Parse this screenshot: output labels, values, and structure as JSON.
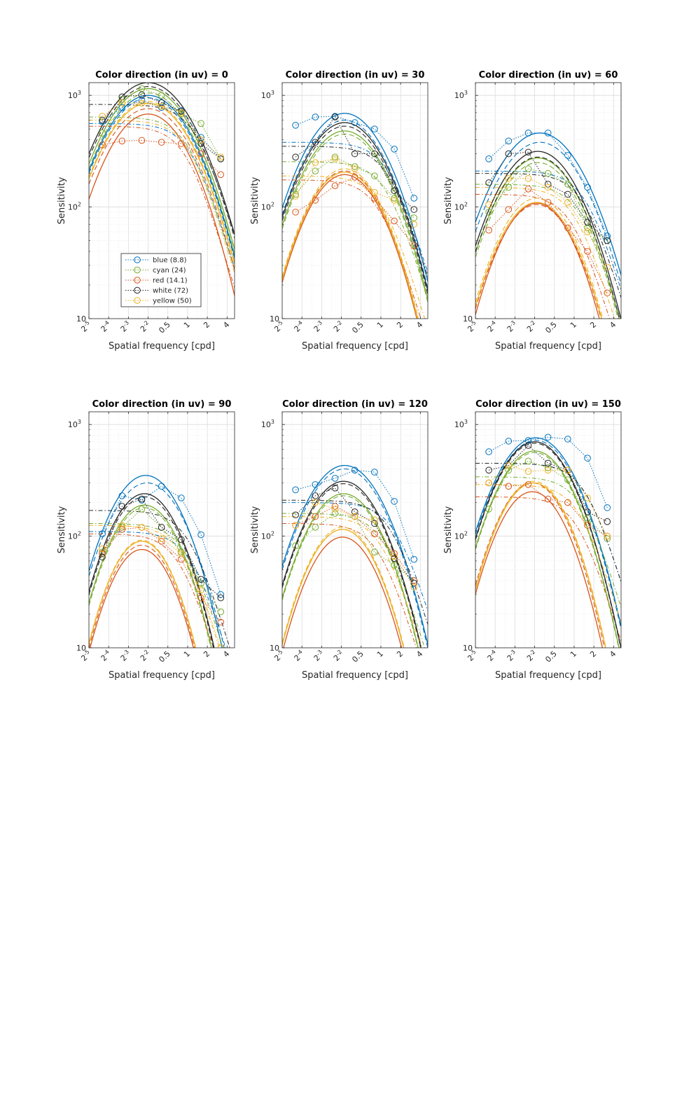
{
  "chart_data": {
    "type": "line",
    "figure_xlabel": "Spatial frequency [cpd]",
    "figure_ylabel": "Sensitivity",
    "title_prefix": "Color direction (in uv) = ",
    "x_ticks": [
      {
        "value": 0.03125,
        "base": "2",
        "exp": "-5"
      },
      {
        "value": 0.0625,
        "base": "2",
        "exp": "-4"
      },
      {
        "value": 0.125,
        "base": "2",
        "exp": "-3"
      },
      {
        "value": 0.25,
        "base": "2",
        "exp": "-2"
      },
      {
        "value": 0.5,
        "base": "0.5",
        "exp": ""
      },
      {
        "value": 1,
        "base": "1",
        "exp": ""
      },
      {
        "value": 2,
        "base": "2",
        "exp": ""
      },
      {
        "value": 4,
        "base": "4",
        "exp": ""
      }
    ],
    "y_ticks": [
      {
        "value": 10,
        "base": "10",
        "exp": ""
      },
      {
        "value": 100,
        "base": "10",
        "exp": "2"
      },
      {
        "value": 1000,
        "base": "10",
        "exp": "3"
      }
    ],
    "x_scale": "log",
    "y_scale": "log",
    "xlim": [
      0.03125,
      5.2
    ],
    "ylim": [
      10,
      1300
    ],
    "grid": true,
    "legend_location": "lower-center",
    "measured_x": [
      0.05,
      0.1,
      0.2,
      0.4,
      0.8,
      1.6,
      3.2
    ],
    "series_meta": [
      {
        "key": "blue",
        "label": "blue (8.8)",
        "color": "#0072BD"
      },
      {
        "key": "cyan",
        "label": "cyan (24)",
        "color": "#77AC30"
      },
      {
        "key": "red",
        "label": "red (14.1)",
        "color": "#D95319"
      },
      {
        "key": "white",
        "label": "white (72)",
        "color": "#262626"
      },
      {
        "key": "yellow",
        "label": "yellow (50)",
        "color": "#EDB120"
      }
    ],
    "panels": [
      {
        "direction": "0",
        "measured": {
          "blue": [
            580,
            780,
            900,
            780,
            730,
            420,
            270
          ],
          "cyan": [
            460,
            920,
            1150,
            1000,
            680,
            560,
            270
          ],
          "red": [
            360,
            390,
            395,
            380,
            370,
            300,
            195
          ],
          "white": [
            600,
            970,
            1010,
            860,
            720,
            370,
            270
          ],
          "yellow": [
            650,
            860,
            850,
            800,
            700,
            400,
            280
          ]
        },
        "model_solid": {
          "blue": {
            "peak": 1000,
            "fp": 0.25,
            "w": 1.7
          },
          "cyan": {
            "peak": 1150,
            "fp": 0.25,
            "w": 1.7
          },
          "red": {
            "peak": 680,
            "fp": 0.25,
            "w": 1.6
          },
          "white": {
            "peak": 1300,
            "fp": 0.25,
            "w": 1.75
          },
          "yellow": {
            "peak": 850,
            "fp": 0.25,
            "w": 1.7
          }
        },
        "model_dashed": {
          "blue": {
            "peak": 950,
            "fp": 0.25,
            "w": 1.7
          },
          "cyan": {
            "peak": 1050,
            "fp": 0.25,
            "w": 1.7
          },
          "red": {
            "peak": 760,
            "fp": 0.25,
            "w": 1.7
          },
          "white": {
            "peak": 1200,
            "fp": 0.25,
            "w": 1.75
          },
          "yellow": {
            "peak": 880,
            "fp": 0.25,
            "w": 1.7
          }
        },
        "model_dashdot": {
          "blue": {
            "plateau": 560,
            "fc": 1.2
          },
          "cyan": {
            "plateau": 640,
            "fc": 1.1
          },
          "red": {
            "plateau": 530,
            "fc": 1.0
          },
          "white": {
            "plateau": 830,
            "fc": 1.4
          },
          "yellow": {
            "plateau": 600,
            "fc": 1.1
          }
        }
      },
      {
        "direction": "30",
        "measured": {
          "blue": [
            540,
            640,
            650,
            570,
            500,
            330,
            120
          ],
          "cyan": [
            130,
            210,
            280,
            230,
            190,
            120,
            80
          ],
          "red": [
            90,
            115,
            155,
            185,
            120,
            75,
            45
          ],
          "white": [
            280,
            380,
            640,
            300,
            300,
            140,
            95
          ],
          "yellow": [
            125,
            250,
            270,
            220,
            135,
            115,
            70
          ]
        },
        "model_solid": {
          "blue": {
            "peak": 690,
            "fp": 0.28,
            "w": 1.6
          },
          "cyan": {
            "peak": 480,
            "fp": 0.28,
            "w": 1.6
          },
          "red": {
            "peak": 195,
            "fp": 0.28,
            "w": 1.5
          },
          "white": {
            "peak": 570,
            "fp": 0.28,
            "w": 1.6
          },
          "yellow": {
            "peak": 205,
            "fp": 0.28,
            "w": 1.5
          }
        },
        "model_dashed": {
          "blue": {
            "peak": 600,
            "fp": 0.28,
            "w": 1.6
          },
          "cyan": {
            "peak": 450,
            "fp": 0.28,
            "w": 1.6
          },
          "red": {
            "peak": 210,
            "fp": 0.28,
            "w": 1.5
          },
          "white": {
            "peak": 530,
            "fp": 0.28,
            "w": 1.6
          },
          "yellow": {
            "peak": 220,
            "fp": 0.28,
            "w": 1.5
          }
        },
        "model_dashdot": {
          "blue": {
            "plateau": 380,
            "fc": 1.4
          },
          "cyan": {
            "plateau": 255,
            "fc": 1.3
          },
          "red": {
            "plateau": 175,
            "fc": 1.0
          },
          "white": {
            "plateau": 350,
            "fc": 1.4
          },
          "yellow": {
            "plateau": 190,
            "fc": 1.1
          }
        }
      },
      {
        "direction": "60",
        "measured": {
          "blue": [
            270,
            390,
            460,
            460,
            290,
            150,
            55
          ],
          "cyan": [
            90,
            150,
            220,
            200,
            160,
            65,
            50
          ],
          "red": [
            62,
            95,
            145,
            110,
            65,
            40,
            17
          ],
          "white": [
            165,
            300,
            310,
            160,
            130,
            73,
            50
          ],
          "yellow": [
            105,
            180,
            180,
            150,
            110,
            60,
            29
          ]
        },
        "model_solid": {
          "blue": {
            "peak": 460,
            "fp": 0.3,
            "w": 1.7
          },
          "cyan": {
            "peak": 275,
            "fp": 0.28,
            "w": 1.6
          },
          "red": {
            "peak": 108,
            "fp": 0.27,
            "w": 1.45
          },
          "white": {
            "peak": 315,
            "fp": 0.28,
            "w": 1.6
          },
          "yellow": {
            "peak": 110,
            "fp": 0.27,
            "w": 1.5
          }
        },
        "model_dashed": {
          "blue": {
            "peak": 380,
            "fp": 0.3,
            "w": 1.7
          },
          "cyan": {
            "peak": 250,
            "fp": 0.28,
            "w": 1.6
          },
          "red": {
            "peak": 105,
            "fp": 0.27,
            "w": 1.5
          },
          "white": {
            "peak": 280,
            "fp": 0.28,
            "w": 1.6
          },
          "yellow": {
            "peak": 120,
            "fp": 0.27,
            "w": 1.5
          }
        },
        "model_dashdot": {
          "blue": {
            "plateau": 210,
            "fc": 1.6
          },
          "cyan": {
            "plateau": 160,
            "fc": 1.3
          },
          "red": {
            "plateau": 130,
            "fc": 1.0
          },
          "white": {
            "plateau": 200,
            "fc": 1.5
          },
          "yellow": {
            "plateau": 150,
            "fc": 1.1
          }
        }
      },
      {
        "direction": "90",
        "measured": {
          "blue": [
            105,
            230,
            210,
            280,
            220,
            103,
            30
          ],
          "cyan": [
            72,
            120,
            175,
            120,
            72,
            38,
            21
          ],
          "red": [
            70,
            115,
            120,
            90,
            62,
            28,
            17
          ],
          "white": [
            65,
            185,
            215,
            120,
            93,
            41,
            28
          ],
          "yellow": [
            77,
            125,
            120,
            95,
            70,
            33,
            10
          ]
        },
        "model_solid": {
          "blue": {
            "peak": 350,
            "fp": 0.23,
            "w": 1.45
          },
          "cyan": {
            "peak": 190,
            "fp": 0.22,
            "w": 1.4
          },
          "red": {
            "peak": 76,
            "fp": 0.2,
            "w": 1.3
          },
          "white": {
            "peak": 240,
            "fp": 0.22,
            "w": 1.4
          },
          "yellow": {
            "peak": 90,
            "fp": 0.2,
            "w": 1.3
          }
        },
        "model_dashed": {
          "blue": {
            "peak": 300,
            "fp": 0.24,
            "w": 1.5
          },
          "cyan": {
            "peak": 180,
            "fp": 0.22,
            "w": 1.4
          },
          "red": {
            "peak": 83,
            "fp": 0.2,
            "w": 1.3
          },
          "white": {
            "peak": 225,
            "fp": 0.22,
            "w": 1.4
          },
          "yellow": {
            "peak": 92,
            "fp": 0.2,
            "w": 1.3
          }
        },
        "model_dashdot": {
          "blue": {
            "plateau": 110,
            "fc": 1.2
          },
          "cyan": {
            "plateau": 130,
            "fc": 1.0
          },
          "red": {
            "plateau": 105,
            "fc": 0.8
          },
          "white": {
            "plateau": 170,
            "fc": 1.1
          },
          "yellow": {
            "plateau": 125,
            "fc": 0.9
          }
        }
      },
      {
        "direction": "120",
        "measured": {
          "blue": [
            260,
            290,
            330,
            390,
            375,
            205,
            62
          ],
          "cyan": [
            82,
            120,
            160,
            150,
            72,
            55,
            40
          ],
          "red": [
            125,
            150,
            185,
            150,
            105,
            70,
            40
          ],
          "white": [
            155,
            230,
            270,
            165,
            130,
            63,
            38
          ],
          "yellow": [
            125,
            200,
            175,
            150,
            140,
            66,
            35
          ]
        },
        "model_solid": {
          "blue": {
            "peak": 430,
            "fp": 0.28,
            "w": 1.55
          },
          "cyan": {
            "peak": 240,
            "fp": 0.27,
            "w": 1.5
          },
          "red": {
            "peak": 98,
            "fp": 0.26,
            "w": 1.4
          },
          "white": {
            "peak": 310,
            "fp": 0.27,
            "w": 1.5
          },
          "yellow": {
            "peak": 115,
            "fp": 0.26,
            "w": 1.4
          }
        },
        "model_dashed": {
          "blue": {
            "peak": 400,
            "fp": 0.28,
            "w": 1.55
          },
          "cyan": {
            "peak": 230,
            "fp": 0.27,
            "w": 1.5
          },
          "red": {
            "peak": 115,
            "fp": 0.26,
            "w": 1.4
          },
          "white": {
            "peak": 295,
            "fp": 0.27,
            "w": 1.5
          },
          "yellow": {
            "peak": 120,
            "fp": 0.26,
            "w": 1.4
          }
        },
        "model_dashdot": {
          "blue": {
            "plateau": 200,
            "fc": 1.8
          },
          "cyan": {
            "plateau": 160,
            "fc": 1.2
          },
          "red": {
            "plateau": 130,
            "fc": 1.0
          },
          "white": {
            "plateau": 210,
            "fc": 1.5
          },
          "yellow": {
            "plateau": 150,
            "fc": 1.1
          }
        }
      },
      {
        "direction": "150",
        "measured": {
          "blue": [
            570,
            710,
            720,
            770,
            740,
            500,
            180
          ],
          "cyan": [
            175,
            390,
            470,
            410,
            320,
            145,
            95
          ],
          "red": [
            300,
            280,
            290,
            215,
            200,
            125,
            100
          ],
          "white": [
            390,
            430,
            650,
            450,
            390,
            165,
            135
          ],
          "yellow": [
            300,
            430,
            380,
            390,
            390,
            220,
            100
          ]
        },
        "model_solid": {
          "blue": {
            "peak": 760,
            "fp": 0.26,
            "w": 1.55
          },
          "cyan": {
            "peak": 580,
            "fp": 0.25,
            "w": 1.5
          },
          "red": {
            "peak": 250,
            "fp": 0.23,
            "w": 1.4
          },
          "white": {
            "peak": 700,
            "fp": 0.25,
            "w": 1.5
          },
          "yellow": {
            "peak": 300,
            "fp": 0.24,
            "w": 1.4
          }
        },
        "model_dashed": {
          "blue": {
            "peak": 720,
            "fp": 0.26,
            "w": 1.55
          },
          "cyan": {
            "peak": 560,
            "fp": 0.25,
            "w": 1.5
          },
          "red": {
            "peak": 300,
            "fp": 0.23,
            "w": 1.4
          },
          "white": {
            "peak": 680,
            "fp": 0.25,
            "w": 1.5
          },
          "yellow": {
            "peak": 310,
            "fp": 0.24,
            "w": 1.4
          }
        },
        "model_dashdot": {
          "blue": {
            "plateau": 450,
            "fc": 1.6
          },
          "cyan": {
            "plateau": 340,
            "fc": 1.4
          },
          "red": {
            "plateau": 225,
            "fc": 1.2
          },
          "white": {
            "plateau": 450,
            "fc": 1.6
          },
          "yellow": {
            "plateau": 290,
            "fc": 1.3
          }
        }
      }
    ]
  }
}
